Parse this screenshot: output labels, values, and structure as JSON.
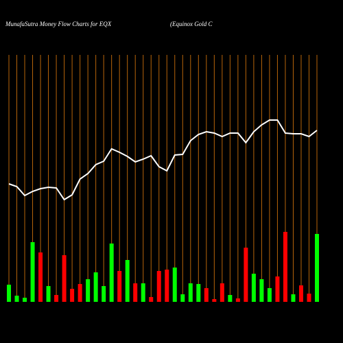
{
  "chart_data": {
    "type": "moneyflow",
    "title": "MunafaSutra  Money Flow  Charts for EQX",
    "subtitle": "(Equinox Gold C",
    "ylim": [
      0,
      360
    ],
    "grid": true,
    "grid_color": "#b8650a",
    "line": {
      "color": "#ffffff",
      "values": [
        172,
        168,
        155,
        161,
        165,
        167,
        166,
        149,
        156,
        179,
        187,
        200,
        205,
        223,
        218,
        212,
        204,
        208,
        213,
        197,
        191,
        214,
        215,
        235,
        244,
        248,
        246,
        241,
        246,
        246,
        232,
        248,
        258,
        265,
        265,
        246,
        245,
        245,
        241,
        250
      ]
    },
    "bars": {
      "values": [
        25,
        9,
        6,
        87,
        72,
        23,
        10,
        68,
        19,
        26,
        33,
        43,
        23,
        85,
        45,
        61,
        27,
        27,
        7,
        45,
        47,
        50,
        11,
        27,
        26,
        20,
        4,
        27,
        10,
        5,
        79,
        41,
        33,
        20,
        37,
        102,
        11,
        24,
        12,
        99
      ],
      "colors": [
        "#00ff00",
        "#00ff00",
        "#00ff00",
        "#00ff00",
        "#ff0000",
        "#00ff00",
        "#ff0000",
        "#ff0000",
        "#ff0000",
        "#ff0000",
        "#00ff00",
        "#00ff00",
        "#00ff00",
        "#00ff00",
        "#ff0000",
        "#00ff00",
        "#ff0000",
        "#00ff00",
        "#ff0000",
        "#ff0000",
        "#ff0000",
        "#00ff00",
        "#00ff00",
        "#00ff00",
        "#00ff00",
        "#ff0000",
        "#ff0000",
        "#ff0000",
        "#00ff00",
        "#ff0000",
        "#ff0000",
        "#00ff00",
        "#00ff00",
        "#00ff00",
        "#ff0000",
        "#ff0000",
        "#00ff00",
        "#ff0000",
        "#ff0000",
        "#00ff00"
      ]
    }
  }
}
